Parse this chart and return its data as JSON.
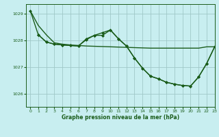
{
  "title": "Graphe pression niveau de la mer (hPa)",
  "background_color": "#c8eef0",
  "grid_color": "#a0c8c8",
  "line_color": "#1a5c1a",
  "xlim": [
    -0.5,
    23
  ],
  "ylim": [
    1025.5,
    1029.35
  ],
  "yticks": [
    1026,
    1027,
    1028,
    1029
  ],
  "xticks": [
    0,
    1,
    2,
    3,
    4,
    5,
    6,
    7,
    8,
    9,
    10,
    11,
    12,
    13,
    14,
    15,
    16,
    17,
    18,
    19,
    20,
    21,
    22,
    23
  ],
  "series": [
    {
      "x": [
        0,
        1,
        2,
        3,
        4,
        5,
        6,
        7,
        8,
        9,
        10,
        11,
        12,
        13,
        14,
        15,
        16,
        17,
        18,
        19,
        20,
        21,
        22,
        23
      ],
      "y": [
        1029.1,
        1028.55,
        1028.2,
        1027.9,
        1027.85,
        1027.82,
        1027.8,
        1027.78,
        1027.77,
        1027.76,
        1027.75,
        1027.74,
        1027.73,
        1027.72,
        1027.71,
        1027.7,
        1027.7,
        1027.7,
        1027.7,
        1027.7,
        1027.7,
        1027.7,
        1027.75,
        1027.75
      ],
      "marker": null,
      "linewidth": 1.0
    },
    {
      "x": [
        0,
        1,
        2,
        3,
        4,
        5,
        6,
        7,
        8,
        9,
        10,
        11,
        12,
        13,
        14,
        15,
        16,
        17,
        18,
        19,
        20,
        21,
        22,
        23
      ],
      "y": [
        1029.1,
        1028.2,
        1027.93,
        1027.85,
        1027.82,
        1027.8,
        1027.78,
        1028.02,
        1028.18,
        1028.18,
        1028.38,
        1028.05,
        1027.78,
        1027.33,
        1026.95,
        1026.65,
        1026.55,
        1026.42,
        1026.35,
        1026.3,
        1026.28,
        1026.62,
        1027.12,
        1027.75
      ],
      "marker": "D",
      "markersize": 2.0,
      "linewidth": 1.0
    },
    {
      "x": [
        1,
        2,
        3,
        4,
        5,
        6,
        7,
        8,
        9,
        10,
        11,
        12,
        13,
        14,
        15,
        16,
        17,
        18,
        19,
        20,
        21,
        22,
        23
      ],
      "y": [
        1028.2,
        1027.93,
        1027.85,
        1027.82,
        1027.8,
        1027.78,
        1028.05,
        1028.18,
        1028.28,
        1028.38,
        1028.05,
        1027.78,
        1027.33,
        1026.95,
        1026.65,
        1026.55,
        1026.42,
        1026.35,
        1026.3,
        1026.28,
        1026.62,
        1027.12,
        1027.75
      ],
      "marker": "D",
      "markersize": 2.0,
      "linewidth": 1.0
    }
  ]
}
